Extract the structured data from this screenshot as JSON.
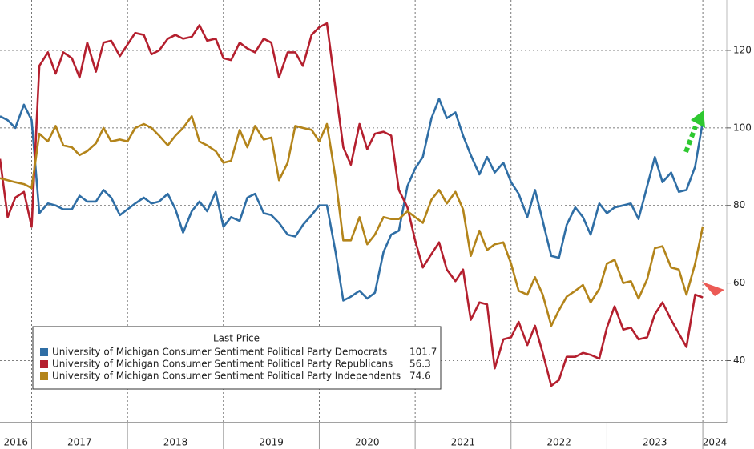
{
  "chart_data": {
    "type": "line",
    "legend_title": "Last Price",
    "x": [
      2016.67,
      2016.75,
      2016.83,
      2016.92,
      2017.0,
      2017.08,
      2017.17,
      2017.25,
      2017.33,
      2017.42,
      2017.5,
      2017.58,
      2017.67,
      2017.75,
      2017.83,
      2017.92,
      2018.0,
      2018.08,
      2018.17,
      2018.25,
      2018.33,
      2018.42,
      2018.5,
      2018.58,
      2018.67,
      2018.75,
      2018.83,
      2018.92,
      2019.0,
      2019.08,
      2019.17,
      2019.25,
      2019.33,
      2019.42,
      2019.5,
      2019.58,
      2019.67,
      2019.75,
      2019.83,
      2019.92,
      2020.0,
      2020.08,
      2020.17,
      2020.25,
      2020.33,
      2020.42,
      2020.5,
      2020.58,
      2020.67,
      2020.75,
      2020.83,
      2020.92,
      2021.0,
      2021.08,
      2021.17,
      2021.25,
      2021.33,
      2021.42,
      2021.5,
      2021.58,
      2021.67,
      2021.75,
      2021.83,
      2021.92,
      2022.0,
      2022.08,
      2022.17,
      2022.25,
      2022.33,
      2022.42,
      2022.5,
      2022.58,
      2022.67,
      2022.75,
      2022.83,
      2022.92,
      2023.0,
      2023.08,
      2023.17,
      2023.25,
      2023.33,
      2023.42,
      2023.5,
      2023.58,
      2023.67,
      2023.75,
      2023.83,
      2023.92,
      2024.0
    ],
    "series": [
      {
        "name": "University of Michigan Consumer Sentiment Political Party Democrats",
        "color": "#2f6ea5",
        "values": [
          103,
          102,
          100,
          106,
          102,
          78,
          80.5,
          80,
          79,
          79,
          82.5,
          81,
          81,
          84,
          82,
          77.5,
          79,
          80.5,
          82,
          80.5,
          81,
          83,
          79,
          73,
          78.5,
          81,
          78.5,
          83.5,
          74.5,
          77,
          76,
          82,
          83,
          78,
          77.5,
          75.5,
          72.5,
          72,
          75,
          77.5,
          80,
          80,
          68,
          55.5,
          56.5,
          58,
          56,
          57.5,
          68,
          72.5,
          73.5,
          85,
          89.5,
          92.5,
          102.5,
          107.5,
          102.5,
          104,
          98,
          93,
          88,
          92.5,
          88.5,
          91,
          86,
          83,
          77,
          84,
          76,
          67,
          66.5,
          75,
          79.5,
          77,
          72.5,
          80.5,
          78,
          79.5,
          80,
          80.5,
          76.5,
          85,
          92.5,
          86,
          88.5,
          83.5,
          84,
          90,
          101.7
        ]
      },
      {
        "name": "University of Michigan Consumer Sentiment Political Party Republicans",
        "color": "#b41f2e",
        "values": [
          92,
          77,
          82,
          83.5,
          74.5,
          116,
          119.5,
          114,
          119.5,
          118,
          113,
          122,
          114.5,
          122,
          122.5,
          118.5,
          121.5,
          124.5,
          124,
          119,
          120,
          123,
          124,
          123,
          123.5,
          126.5,
          122.5,
          123,
          118,
          117.5,
          122,
          120.5,
          119.5,
          123,
          122,
          113,
          119.5,
          119.5,
          116,
          124,
          126,
          127,
          110,
          95,
          90.5,
          101,
          94.5,
          98.5,
          99,
          98,
          84,
          79.5,
          71,
          64,
          67.5,
          70.5,
          63.5,
          60.5,
          63.5,
          50.5,
          55,
          54.5,
          38,
          45.5,
          46,
          50,
          44,
          49,
          42,
          33.5,
          35,
          41,
          41,
          42,
          41.5,
          40.5,
          48.5,
          54,
          48,
          48.5,
          45.5,
          46,
          52,
          55,
          50.5,
          47,
          43.5,
          57,
          56.3
        ]
      },
      {
        "name": "University of Michigan Consumer Sentiment Political Party Independents",
        "color": "#b3841a",
        "values": [
          87,
          86.5,
          86,
          85.5,
          84.5,
          98.5,
          96.5,
          100.5,
          95.5,
          95,
          93,
          94,
          96,
          100,
          96.5,
          97,
          96.5,
          100,
          101,
          100,
          98,
          95.5,
          98,
          100,
          103,
          96.5,
          95.5,
          94,
          91,
          91.5,
          99.5,
          95,
          100.5,
          97,
          97.5,
          86.5,
          91,
          100.5,
          100,
          99.5,
          96.5,
          101,
          87,
          71,
          71,
          77,
          70,
          72.5,
          77,
          76.5,
          76.5,
          78.5,
          77,
          75.5,
          81.5,
          84,
          80.5,
          83.5,
          79,
          67,
          73.5,
          68.5,
          70,
          70.5,
          65,
          58,
          57,
          61.5,
          57,
          49,
          53,
          56.5,
          58,
          59.5,
          55,
          58.5,
          65,
          66,
          60,
          60.5,
          56,
          61,
          69,
          69.5,
          64,
          63.5,
          57,
          65,
          74.6
        ]
      }
    ],
    "xlim": [
      2016.67,
      2024.25
    ],
    "xticks": [
      2016,
      2017,
      2018,
      2019,
      2020,
      2021,
      2022,
      2023,
      2024
    ],
    "ylim": [
      24,
      133
    ],
    "yticks": [
      40,
      60,
      80,
      100,
      120
    ],
    "grid": true
  }
}
